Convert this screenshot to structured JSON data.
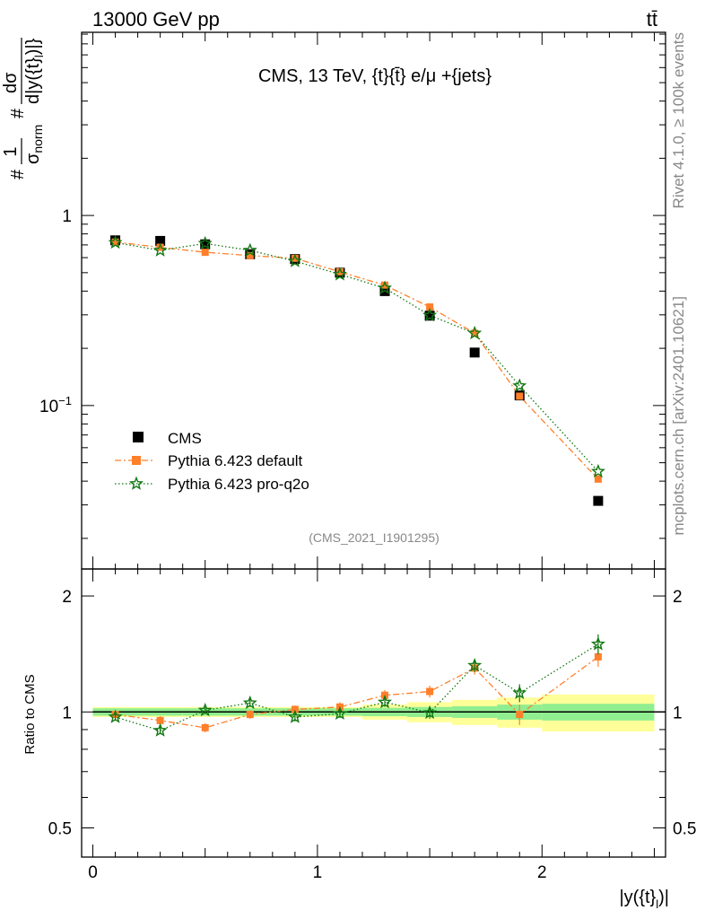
{
  "header": {
    "energy_label": "13000 GeV pp",
    "process_label": "tt̄"
  },
  "side_labels": {
    "rivet": "Rivet 4.1.0, ≥ 100k events",
    "mcplots": "mcplots.cern.ch [arXiv:2401.10621]"
  },
  "chart_data": [
    {
      "type": "scatter",
      "panel": "main",
      "title": "CMS, 13 TeV, {t}{t̄} e/μ +{jets}",
      "watermark": "(CMS_2021_I1901295)",
      "ylabel": {
        "prefix": "#",
        "numerator": "1",
        "denominator_main": "σ",
        "denominator_sub": "norm",
        "mid": "#",
        "deriv_num": "dσ",
        "deriv_den_main": "d|y({t}",
        "deriv_den_sub": "l",
        "deriv_den_end": ")|}"
      },
      "yscale": "log",
      "ylim": [
        0.0138,
        9.2
      ],
      "xlim": [
        -0.05,
        2.55
      ],
      "yticks_major": [
        {
          "value": 1,
          "label": "1"
        },
        {
          "value": 0.1,
          "label_base": "10",
          "label_exp": "−1"
        }
      ],
      "legend_position": "lower-left",
      "legend": [
        "CMS",
        "Pythia 6.423 default",
        "Pythia 6.423 pro-q2o"
      ],
      "x": [
        0.1,
        0.3,
        0.5,
        0.7,
        0.9,
        1.1,
        1.3,
        1.5,
        1.7,
        1.9,
        2.25
      ],
      "series": [
        {
          "name": "CMS",
          "color": "#000000",
          "marker": "square",
          "values": [
            0.74,
            0.735,
            0.705,
            0.625,
            0.59,
            0.5,
            0.4,
            0.297,
            0.19,
            0.113,
            0.0315
          ]
        },
        {
          "name": "Pythia 6.423 default",
          "color": "#ff7f2a",
          "marker": "square",
          "line": "dashdot",
          "values": [
            0.725,
            0.68,
            0.64,
            0.615,
            0.595,
            0.505,
            0.43,
            0.33,
            0.24,
            0.112,
            0.041
          ]
        },
        {
          "name": "Pythia 6.423 pro-q2o",
          "color": "#117711",
          "marker": "star",
          "line": "dotted",
          "values": [
            0.72,
            0.655,
            0.712,
            0.655,
            0.575,
            0.49,
            0.415,
            0.298,
            0.24,
            0.127,
            0.045
          ]
        }
      ]
    },
    {
      "type": "scatter",
      "panel": "ratio",
      "ylabel": "Ratio to CMS",
      "xlabel": {
        "main": "|y({t}",
        "sub": "l",
        "end": ")|"
      },
      "yscale": "log",
      "ylim": [
        0.42,
        2.35
      ],
      "xlim": [
        -0.05,
        2.55
      ],
      "yticks_major": [
        {
          "value": 0.5,
          "label": "0.5"
        },
        {
          "value": 1,
          "label": "1"
        },
        {
          "value": 2,
          "label": "2"
        }
      ],
      "xticks_major": [
        {
          "value": 0,
          "label": "0"
        },
        {
          "value": 1,
          "label": "1"
        },
        {
          "value": 2,
          "label": "2"
        }
      ],
      "bands": {
        "x_edges": [
          0,
          0.2,
          0.4,
          0.6,
          0.8,
          1.0,
          1.2,
          1.4,
          1.6,
          1.8,
          2.0,
          2.5
        ],
        "stat_half": [
          0.022,
          0.022,
          0.022,
          0.022,
          0.022,
          0.022,
          0.025,
          0.03,
          0.035,
          0.045,
          0.05
        ],
        "total_half": [
          0.03,
          0.03,
          0.03,
          0.03,
          0.03,
          0.03,
          0.045,
          0.06,
          0.075,
          0.09,
          0.11
        ],
        "stat_color": "#90ee90",
        "total_color": "#ffff99"
      },
      "x": [
        0.1,
        0.3,
        0.5,
        0.7,
        0.9,
        1.1,
        1.3,
        1.5,
        1.7,
        1.9,
        2.25
      ],
      "series": [
        {
          "name": "Pythia 6.423 default",
          "color": "#ff7f2a",
          "marker": "square",
          "line": "dashdot",
          "values": [
            0.985,
            0.95,
            0.91,
            0.985,
            1.015,
            1.03,
            1.105,
            1.13,
            1.3,
            0.985,
            1.39
          ],
          "errors": [
            0.02,
            0.025,
            0.025,
            0.025,
            0.025,
            0.03,
            0.035,
            0.04,
            0.05,
            0.06,
            0.08
          ]
        },
        {
          "name": "Pythia 6.423 pro-q2o",
          "color": "#117711",
          "marker": "star",
          "line": "dotted",
          "values": [
            0.97,
            0.895,
            1.01,
            1.055,
            0.97,
            0.99,
            1.06,
            0.995,
            1.32,
            1.12,
            1.5
          ],
          "errors": [
            0.02,
            0.02,
            0.02,
            0.025,
            0.025,
            0.025,
            0.03,
            0.035,
            0.05,
            0.06,
            0.09
          ]
        }
      ]
    }
  ]
}
